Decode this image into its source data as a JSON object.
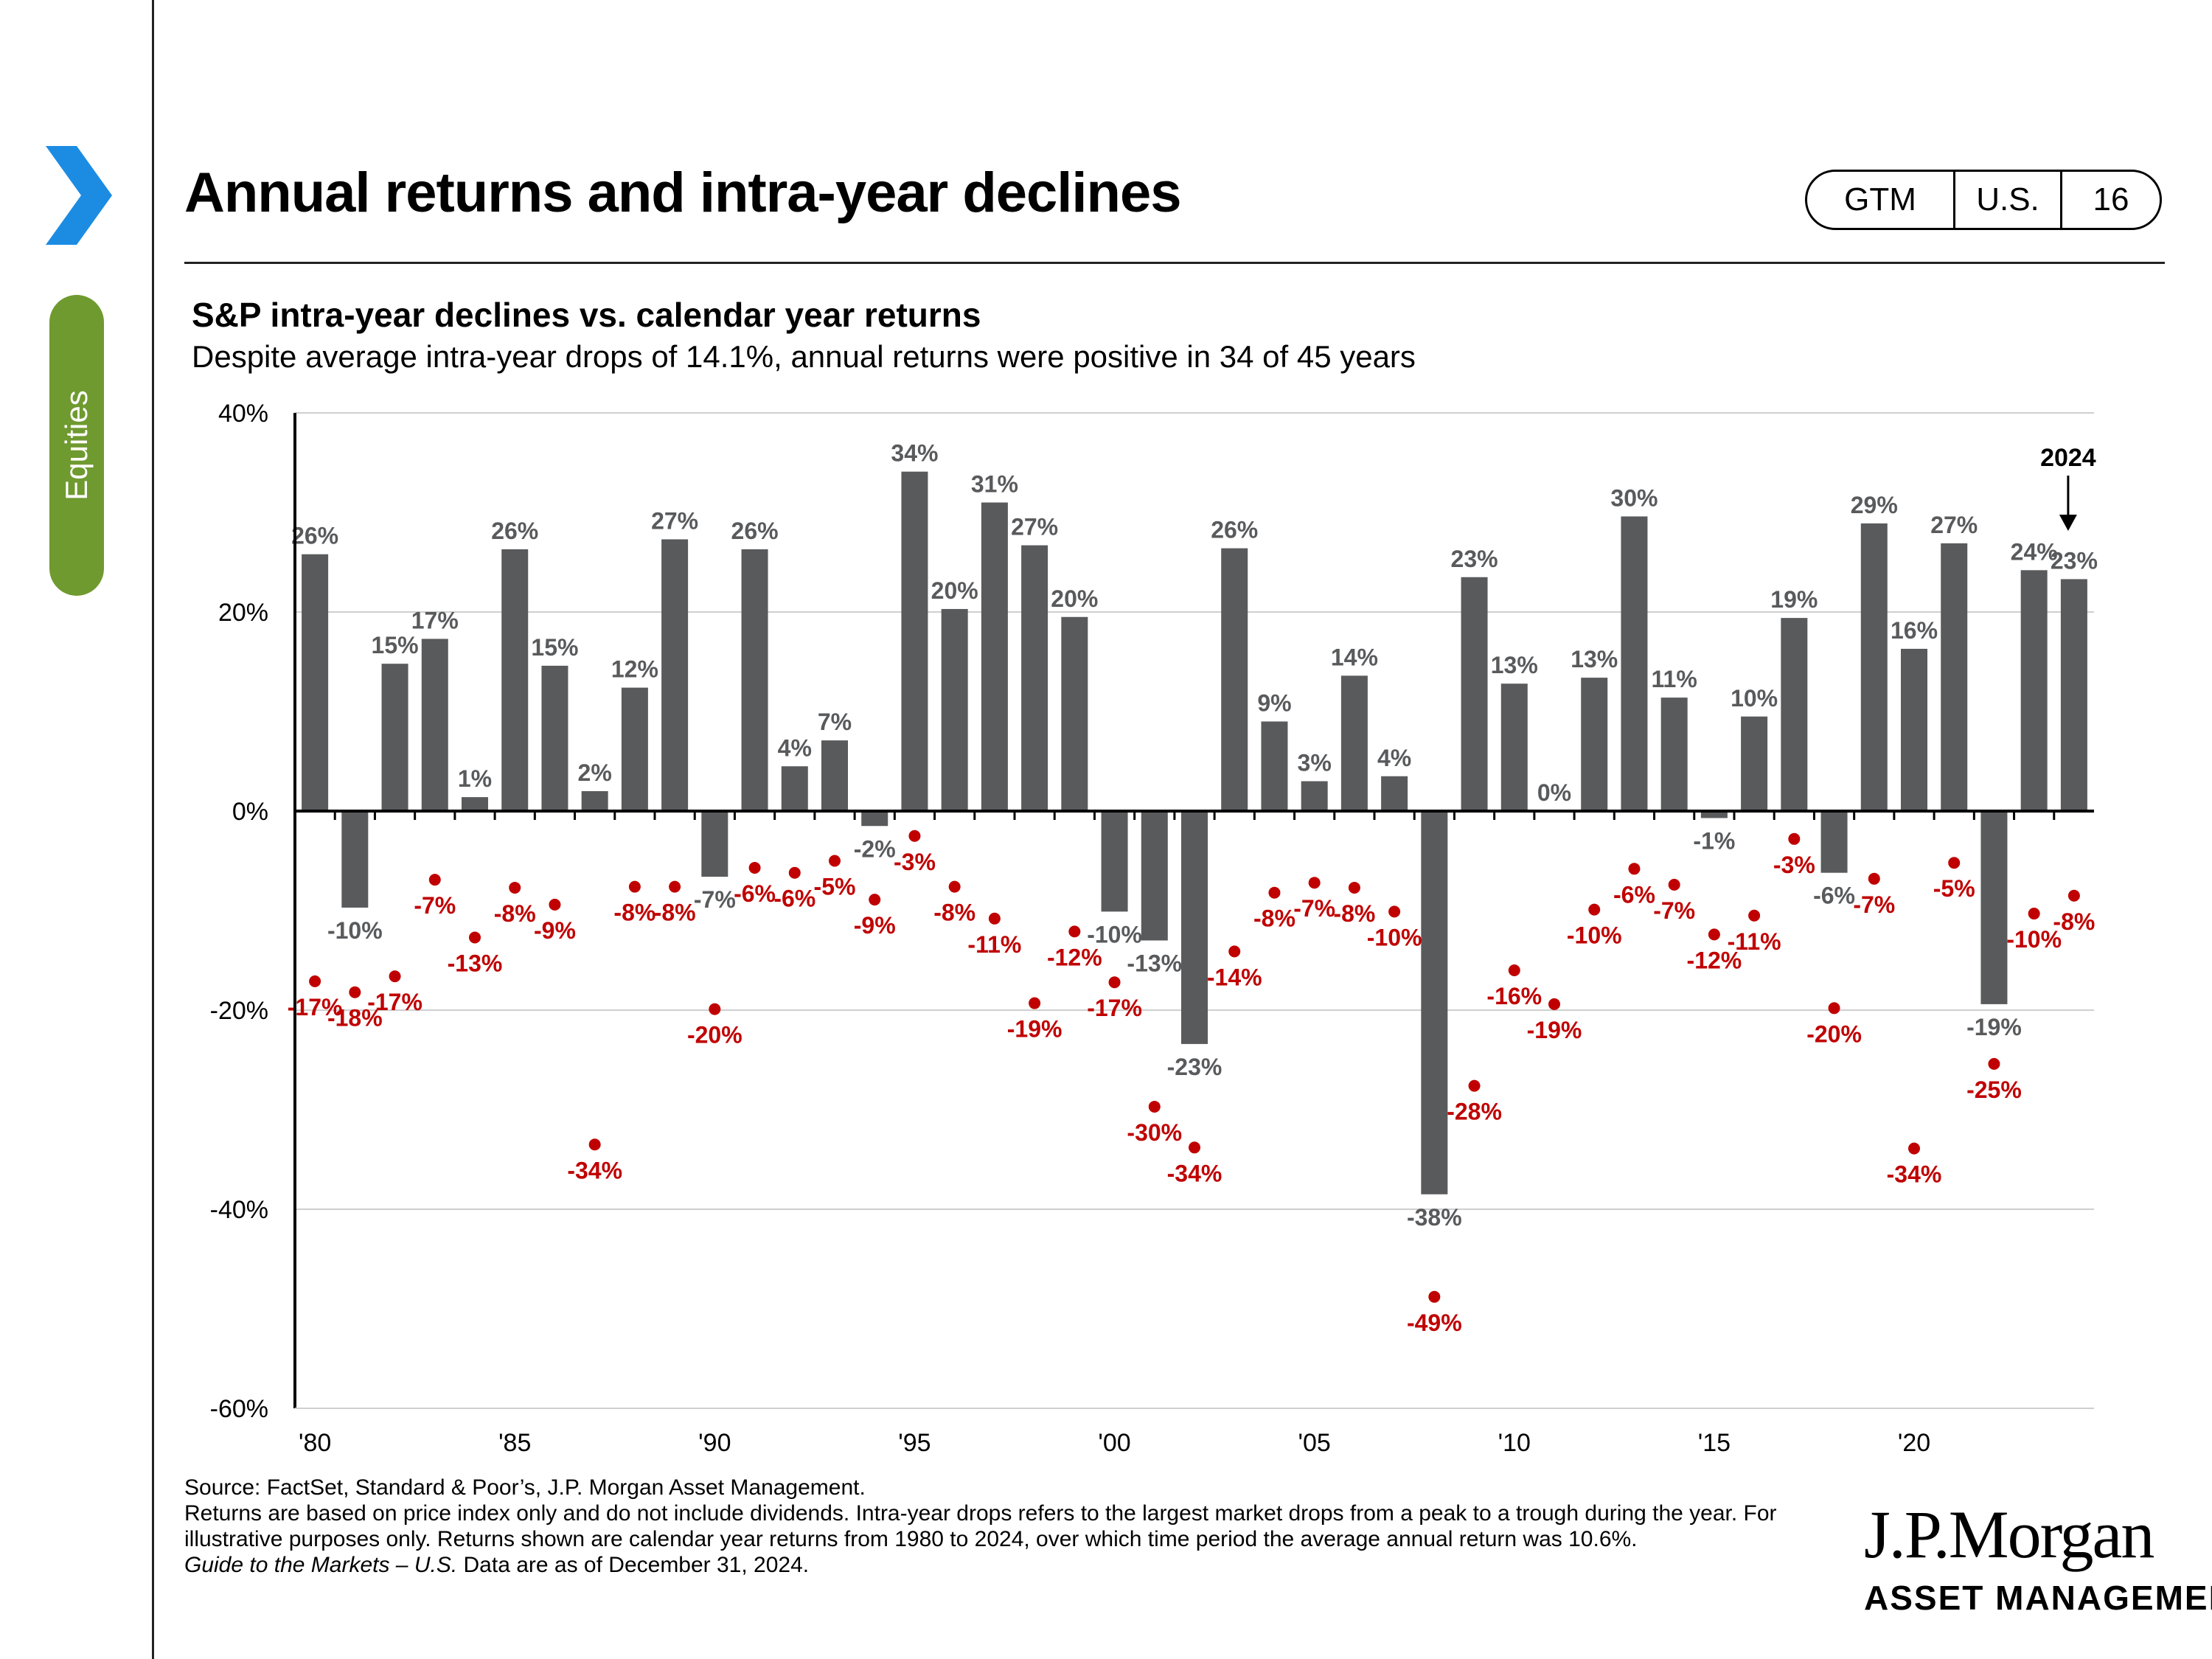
{
  "header": {
    "title": "Annual returns and intra-year declines",
    "badge": [
      "GTM",
      "U.S.",
      "16"
    ]
  },
  "sidebar": {
    "tab_label": "Equities"
  },
  "colors": {
    "bar": "#595a5c",
    "decline": "#c00000",
    "tab": "#6f9a2f",
    "chevron": "#1c8ce3"
  },
  "icons": {
    "nav": "chevron-right-icon"
  },
  "chart_data": {
    "type": "bar",
    "title": "S&P intra-year declines vs. calendar year returns",
    "subtitle": "Despite average intra-year drops of 14.1%, annual returns were positive in 34 of 45 years",
    "x": [
      1980,
      1981,
      1982,
      1983,
      1984,
      1985,
      1986,
      1987,
      1988,
      1989,
      1990,
      1991,
      1992,
      1993,
      1994,
      1995,
      1996,
      1997,
      1998,
      1999,
      2000,
      2001,
      2002,
      2003,
      2004,
      2005,
      2006,
      2007,
      2008,
      2009,
      2010,
      2011,
      2012,
      2013,
      2014,
      2015,
      2016,
      2017,
      2018,
      2019,
      2020,
      2021,
      2022,
      2023,
      2024
    ],
    "series": [
      {
        "type": "bar",
        "values": [
          25.8,
          -9.7,
          14.8,
          17.3,
          1.4,
          26.3,
          14.6,
          2.0,
          12.4,
          27.3,
          -6.6,
          26.3,
          4.5,
          7.1,
          -1.5,
          34.1,
          20.3,
          31.0,
          26.7,
          19.5,
          -10.1,
          -13.0,
          -23.4,
          26.4,
          9.0,
          3.0,
          13.6,
          3.5,
          -38.5,
          23.5,
          12.8,
          0.0,
          13.4,
          29.6,
          11.4,
          -0.7,
          9.5,
          19.4,
          -6.2,
          28.9,
          16.3,
          26.9,
          -19.4,
          24.2,
          23.3
        ],
        "labels": [
          "26%",
          "-10%",
          "15%",
          "17%",
          "1%",
          "26%",
          "15%",
          "2%",
          "12%",
          "27%",
          "-7%",
          "26%",
          "4%",
          "7%",
          "-2%",
          "34%",
          "20%",
          "31%",
          "27%",
          "20%",
          "-10%",
          "-13%",
          "-23%",
          "26%",
          "9%",
          "3%",
          "14%",
          "4%",
          "-38%",
          "23%",
          "13%",
          "0%",
          "13%",
          "30%",
          "11%",
          "-1%",
          "10%",
          "19%",
          "-6%",
          "29%",
          "16%",
          "27%",
          "-19%",
          "24%",
          "23%"
        ]
      },
      {
        "type": "scatter",
        "values": [
          -17.1,
          -18.2,
          -16.6,
          -6.9,
          -12.7,
          -7.7,
          -9.4,
          -33.5,
          -7.6,
          -7.6,
          -19.9,
          -5.7,
          -6.2,
          -5.0,
          -8.9,
          -2.5,
          -7.6,
          -10.8,
          -19.3,
          -12.1,
          -17.2,
          -29.7,
          -33.8,
          -14.1,
          -8.2,
          -7.2,
          -7.7,
          -10.1,
          -48.8,
          -27.6,
          -16.0,
          -19.4,
          -9.9,
          -5.8,
          -7.4,
          -12.4,
          -10.5,
          -2.8,
          -19.8,
          -6.8,
          -33.9,
          -5.2,
          -25.4,
          -10.3,
          -8.5
        ],
        "labels": [
          "-17%",
          "-18%",
          "-17%",
          "-7%",
          "-13%",
          "-8%",
          "-9%",
          "-34%",
          "-8%",
          "-8%",
          "-20%",
          "-6%",
          "-6%",
          "-5%",
          "-9%",
          "-3%",
          "-8%",
          "-11%",
          "-19%",
          "-12%",
          "-17%",
          "-30%",
          "-34%",
          "-14%",
          "-8%",
          "-7%",
          "-8%",
          "-10%",
          "-49%",
          "-28%",
          "-16%",
          "-19%",
          "-10%",
          "-6%",
          "-7%",
          "-12%",
          "-11%",
          "-3%",
          "-20%",
          "-7%",
          "-34%",
          "-5%",
          "-25%",
          "-10%",
          "-8%"
        ]
      }
    ],
    "ylim": [
      -60,
      40
    ],
    "yticks": [
      "40%",
      "20%",
      "0%",
      "-20%",
      "-40%",
      "-60%"
    ],
    "ytick_values": [
      40,
      20,
      0,
      -20,
      -40,
      -60
    ],
    "xtick_labels": [
      "'80",
      "'85",
      "'90",
      "'95",
      "'00",
      "'05",
      "'10",
      "'15",
      "'20"
    ],
    "xtick_years": [
      1980,
      1985,
      1990,
      1995,
      2000,
      2005,
      2010,
      2015,
      2020
    ],
    "annotation": "2024",
    "grid": true
  },
  "footnote": {
    "source": "Source: FactSet, Standard & Poor’s, J.P. Morgan Asset Management.",
    "notes": "Returns are based on price index only and do not include dividends. Intra-year drops refers to the largest market drops from a peak to a trough during the year. For illustrative purposes only. Returns shown are calendar year returns from 1980 to 2024, over which time period the average annual return was 10.6%.",
    "guide_title": "Guide to the Markets – U.S.",
    "guide_rest": " Data are as of December 31, 2024."
  },
  "logo": {
    "name": "J.P.Morgan",
    "sub": "ASSET MANAGEMENT"
  }
}
